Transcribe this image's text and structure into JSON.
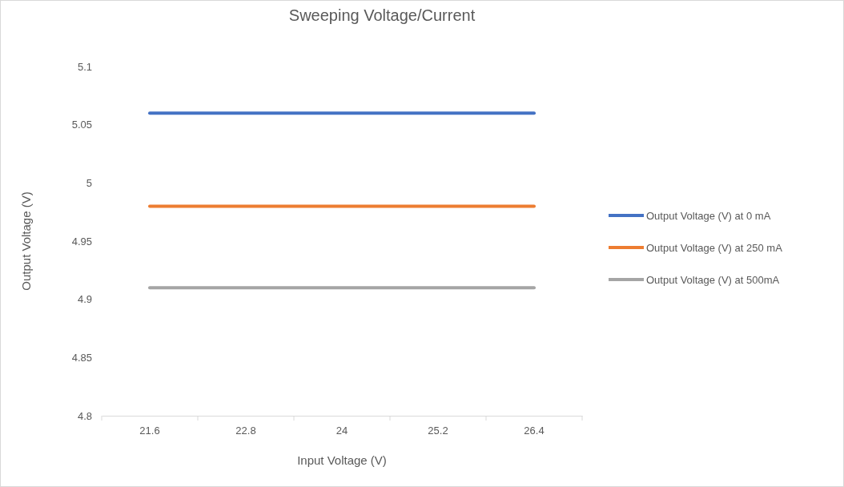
{
  "chart_data": {
    "type": "line",
    "title": "Sweeping Voltage/Current",
    "xlabel": "Input Voltage (V)",
    "ylabel": "Output Voltage (V)",
    "categories": [
      "21.6",
      "22.8",
      "24",
      "25.2",
      "26.4"
    ],
    "series": [
      {
        "name": "Output Voltage (V) at 0 mA",
        "color": "#4472c4",
        "values": [
          5.06,
          5.06,
          5.06,
          5.06,
          5.06
        ]
      },
      {
        "name": "Output Voltage (V) at 250 mA",
        "color": "#ed7d31",
        "values": [
          4.98,
          4.98,
          4.98,
          4.98,
          4.98
        ]
      },
      {
        "name": "Output Voltage (V) at 500mA",
        "color": "#a5a5a5",
        "values": [
          4.91,
          4.91,
          4.91,
          4.91,
          4.91
        ]
      }
    ],
    "ylim": [
      4.8,
      5.1
    ],
    "yticks": [
      4.8,
      4.85,
      4.9,
      4.95,
      5,
      5.05,
      5.1
    ],
    "grid": false,
    "legend": "right",
    "marker": "none",
    "line_style": "solid"
  }
}
